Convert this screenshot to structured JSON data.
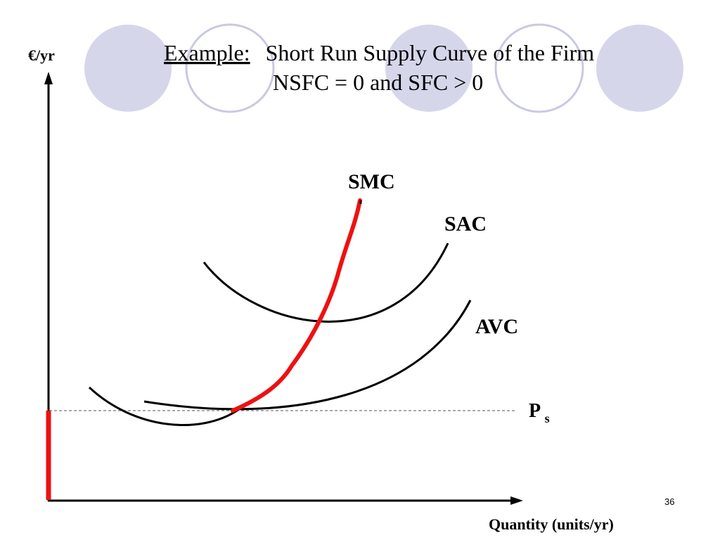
{
  "title": {
    "underlined_prefix": "Example:",
    "line1_rest": "Short Run Supply Curve of the Firm",
    "line2": "NSFC = 0 and SFC > 0"
  },
  "axes": {
    "y_label": "€/yr",
    "x_label": "Quantity (units/yr)"
  },
  "curves": {
    "smc": "SMC",
    "sac": "SAC",
    "avc": "AVC"
  },
  "price_label": {
    "main": "P",
    "subscript": "s"
  },
  "page_number": "36",
  "colors": {
    "circle_filled": "#d6d6eb",
    "circle_outline": "#c9c9e2",
    "supply_curve": "#ee1111",
    "curve": "#000000"
  }
}
